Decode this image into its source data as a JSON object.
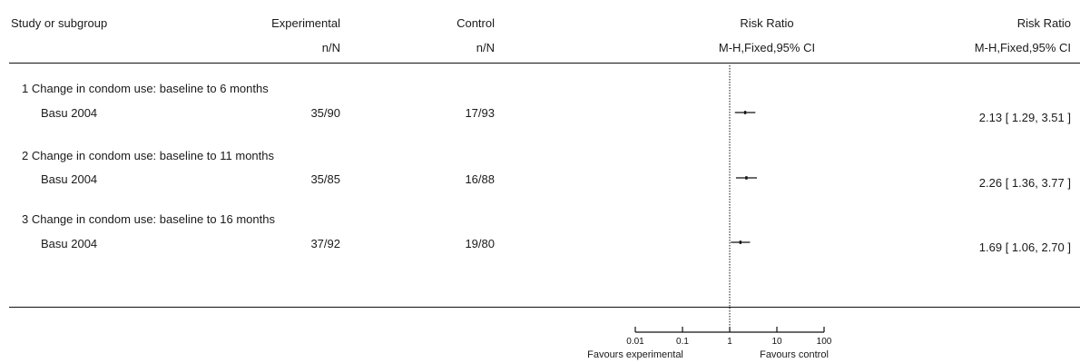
{
  "header": {
    "study_label": "Study or subgroup",
    "experimental_label": "Experimental",
    "experimental_sub": "n/N",
    "control_label": "Control",
    "control_sub": "n/N",
    "plot_label": "Risk Ratio",
    "plot_sub": "M-H,Fixed,95% CI",
    "result_label": "Risk Ratio",
    "result_sub": "M-H,Fixed,95% CI"
  },
  "groups": [
    {
      "heading": "1 Change in condom use: baseline to 6 months",
      "study": "Basu 2004",
      "experimental": "35/90",
      "control": "17/93",
      "result": "2.13 [ 1.29, 3.51 ]"
    },
    {
      "heading": "2 Change in condom use: baseline to 11 months",
      "study": "Basu 2004",
      "experimental": "35/85",
      "control": "16/88",
      "result": "2.26 [ 1.36, 3.77 ]"
    },
    {
      "heading": "3 Change in condom use: baseline to 16 months",
      "study": "Basu 2004",
      "experimental": "37/92",
      "control": "19/80",
      "result": "1.69 [ 1.06, 2.70 ]"
    }
  ],
  "axis": {
    "ticks": [
      "0.01",
      "0.1",
      "1",
      "10",
      "100"
    ],
    "favours_left": "Favours experimental",
    "favours_right": "Favours control"
  },
  "chart_data": {
    "type": "forest",
    "scale": "log",
    "xlim": [
      0.01,
      100
    ],
    "reference_line": 1,
    "points": [
      {
        "estimate": 2.13,
        "lower": 1.29,
        "upper": 3.51
      },
      {
        "estimate": 2.26,
        "lower": 1.36,
        "upper": 3.77
      },
      {
        "estimate": 1.69,
        "lower": 1.06,
        "upper": 2.7
      }
    ],
    "colors": {
      "ink": "#111111"
    }
  }
}
